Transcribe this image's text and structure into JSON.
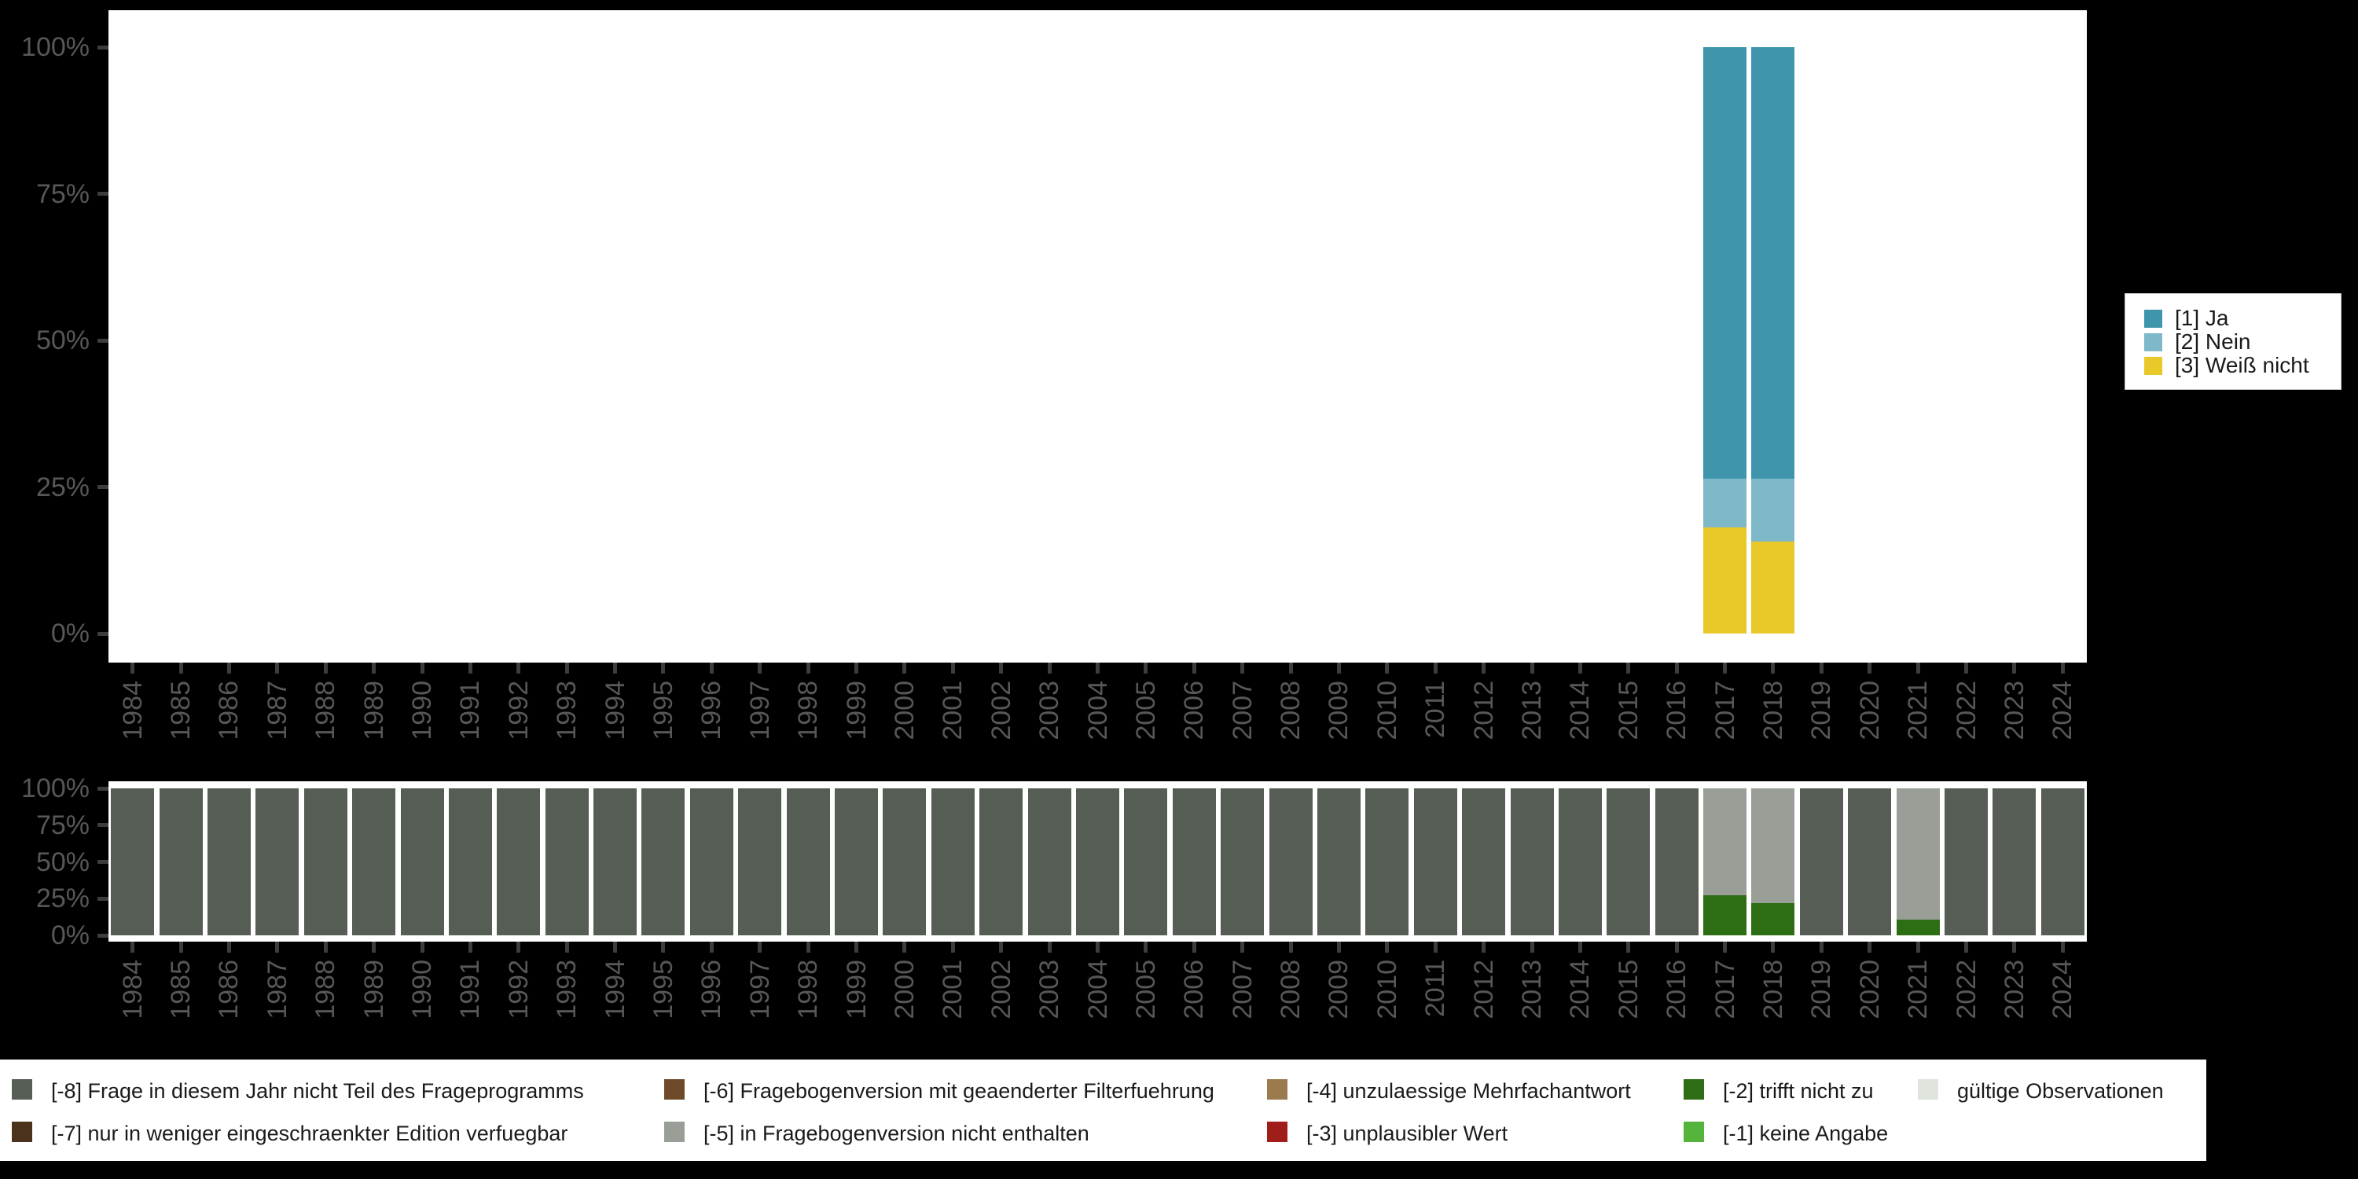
{
  "page": {
    "background": "#000000",
    "plot_background": "#ffffff",
    "axis_text_color": "#575757",
    "tick_color": "#3d3d3d",
    "legend_background": "#ffffff",
    "legend_border": "#c8c8c8",
    "legend_text_color": "#1a1a1a"
  },
  "years": [
    "1984",
    "1985",
    "1986",
    "1987",
    "1988",
    "1989",
    "1990",
    "1991",
    "1992",
    "1993",
    "1994",
    "1995",
    "1996",
    "1997",
    "1998",
    "1999",
    "2000",
    "2001",
    "2002",
    "2003",
    "2004",
    "2005",
    "2006",
    "2007",
    "2008",
    "2009",
    "2010",
    "2011",
    "2012",
    "2013",
    "2014",
    "2015",
    "2016",
    "2017",
    "2018",
    "2019",
    "2020",
    "2021",
    "2022",
    "2023",
    "2024"
  ],
  "y_tick_labels": [
    "100%",
    "75%",
    "50%",
    "25%",
    "0%"
  ],
  "value_legend": {
    "entries": [
      {
        "label": "[1] Ja",
        "color": "#3e95ac"
      },
      {
        "label": "[2] Nein",
        "color": "#7fb8c9"
      },
      {
        "label": "[3] Weiß nicht",
        "color": "#e8c929"
      }
    ]
  },
  "missing_legend": {
    "columns": [
      [
        {
          "label": "[-8] Frage in diesem Jahr nicht Teil des Frageprogramms",
          "color": "#565d54"
        },
        {
          "label": "[-7] nur in weniger eingeschraenkter Edition verfuegbar",
          "color": "#4b321c"
        }
      ],
      [
        {
          "label": "[-6] Fragebogenversion mit geaenderter Filterfuehrung",
          "color": "#6e4a2a"
        },
        {
          "label": "[-5] in Fragebogenversion nicht enthalten",
          "color": "#999f97"
        }
      ],
      [
        {
          "label": "[-4] unzulaessige Mehrfachantwort",
          "color": "#9b7a4e"
        },
        {
          "label": "[-3] unplausibler Wert",
          "color": "#a01e19"
        }
      ],
      [
        {
          "label": "[-2] trifft nicht zu",
          "color": "#2d6e14"
        },
        {
          "label": "[-1] keine Angabe",
          "color": "#55b43c"
        }
      ],
      [
        {
          "label": "gültige Observationen",
          "color": "#dfe4dc"
        }
      ]
    ]
  },
  "chart_data": [
    {
      "type": "bar",
      "stacked": true,
      "title": "",
      "xlabel": "",
      "ylabel": "",
      "ylim": [
        0,
        100
      ],
      "y_ticks": [
        "100%",
        "75%",
        "50%",
        "25%",
        "0%"
      ],
      "grid": false,
      "legend_position": "right",
      "categories": [
        "1984",
        "1985",
        "1986",
        "1987",
        "1988",
        "1989",
        "1990",
        "1991",
        "1992",
        "1993",
        "1994",
        "1995",
        "1996",
        "1997",
        "1998",
        "1999",
        "2000",
        "2001",
        "2002",
        "2003",
        "2004",
        "2005",
        "2006",
        "2007",
        "2008",
        "2009",
        "2010",
        "2011",
        "2012",
        "2013",
        "2014",
        "2015",
        "2016",
        "2017",
        "2018",
        "2019",
        "2020",
        "2021",
        "2022",
        "2023",
        "2024"
      ],
      "series": [
        {
          "name": "[1] Ja",
          "color": "#3e95ac",
          "values": [
            0,
            0,
            0,
            0,
            0,
            0,
            0,
            0,
            0,
            0,
            0,
            0,
            0,
            0,
            0,
            0,
            0,
            0,
            0,
            0,
            0,
            0,
            0,
            0,
            0,
            0,
            0,
            0,
            0,
            0,
            0,
            0,
            0,
            73.6,
            73.6,
            0,
            0,
            0,
            0,
            0,
            0
          ]
        },
        {
          "name": "[2] Nein",
          "color": "#7fb8c9",
          "values": [
            0,
            0,
            0,
            0,
            0,
            0,
            0,
            0,
            0,
            0,
            0,
            0,
            0,
            0,
            0,
            0,
            0,
            0,
            0,
            0,
            0,
            0,
            0,
            0,
            0,
            0,
            0,
            0,
            0,
            0,
            0,
            0,
            0,
            8.3,
            10.7,
            0,
            0,
            0,
            0,
            0,
            0
          ]
        },
        {
          "name": "[3] Weiß nicht",
          "color": "#e8c929",
          "values": [
            0,
            0,
            0,
            0,
            0,
            0,
            0,
            0,
            0,
            0,
            0,
            0,
            0,
            0,
            0,
            0,
            0,
            0,
            0,
            0,
            0,
            0,
            0,
            0,
            0,
            0,
            0,
            0,
            0,
            0,
            0,
            0,
            0,
            18.1,
            15.7,
            0,
            0,
            0,
            0,
            0,
            0
          ]
        }
      ]
    },
    {
      "type": "bar",
      "stacked": true,
      "title": "",
      "xlabel": "",
      "ylabel": "",
      "ylim": [
        0,
        100
      ],
      "y_ticks": [
        "100%",
        "75%",
        "50%",
        "25%",
        "0%"
      ],
      "grid": false,
      "legend_position": "bottom",
      "categories": [
        "1984",
        "1985",
        "1986",
        "1987",
        "1988",
        "1989",
        "1990",
        "1991",
        "1992",
        "1993",
        "1994",
        "1995",
        "1996",
        "1997",
        "1998",
        "1999",
        "2000",
        "2001",
        "2002",
        "2003",
        "2004",
        "2005",
        "2006",
        "2007",
        "2008",
        "2009",
        "2010",
        "2011",
        "2012",
        "2013",
        "2014",
        "2015",
        "2016",
        "2017",
        "2018",
        "2019",
        "2020",
        "2021",
        "2022",
        "2023",
        "2024"
      ],
      "series": [
        {
          "name": "[-8] Frage in diesem Jahr nicht Teil des Frageprogramms",
          "color": "#565d54",
          "values": [
            100,
            100,
            100,
            100,
            100,
            100,
            100,
            100,
            100,
            100,
            100,
            100,
            100,
            100,
            100,
            100,
            100,
            100,
            100,
            100,
            100,
            100,
            100,
            100,
            100,
            100,
            100,
            100,
            100,
            100,
            100,
            100,
            100,
            0,
            0,
            100,
            100,
            0,
            100,
            100,
            100
          ]
        },
        {
          "name": "[-5] in Fragebogenversion nicht enthalten",
          "color": "#999f97",
          "values": [
            0,
            0,
            0,
            0,
            0,
            0,
            0,
            0,
            0,
            0,
            0,
            0,
            0,
            0,
            0,
            0,
            0,
            0,
            0,
            0,
            0,
            0,
            0,
            0,
            0,
            0,
            0,
            0,
            0,
            0,
            0,
            0,
            0,
            72.7,
            78.1,
            0,
            0,
            89.3,
            0,
            0,
            0
          ]
        },
        {
          "name": "[-2] trifft nicht zu",
          "color": "#2d6e14",
          "values": [
            0,
            0,
            0,
            0,
            0,
            0,
            0,
            0,
            0,
            0,
            0,
            0,
            0,
            0,
            0,
            0,
            0,
            0,
            0,
            0,
            0,
            0,
            0,
            0,
            0,
            0,
            0,
            0,
            0,
            0,
            0,
            0,
            0,
            27.3,
            21.9,
            0,
            0,
            10.7,
            0,
            0,
            0
          ]
        }
      ]
    }
  ]
}
